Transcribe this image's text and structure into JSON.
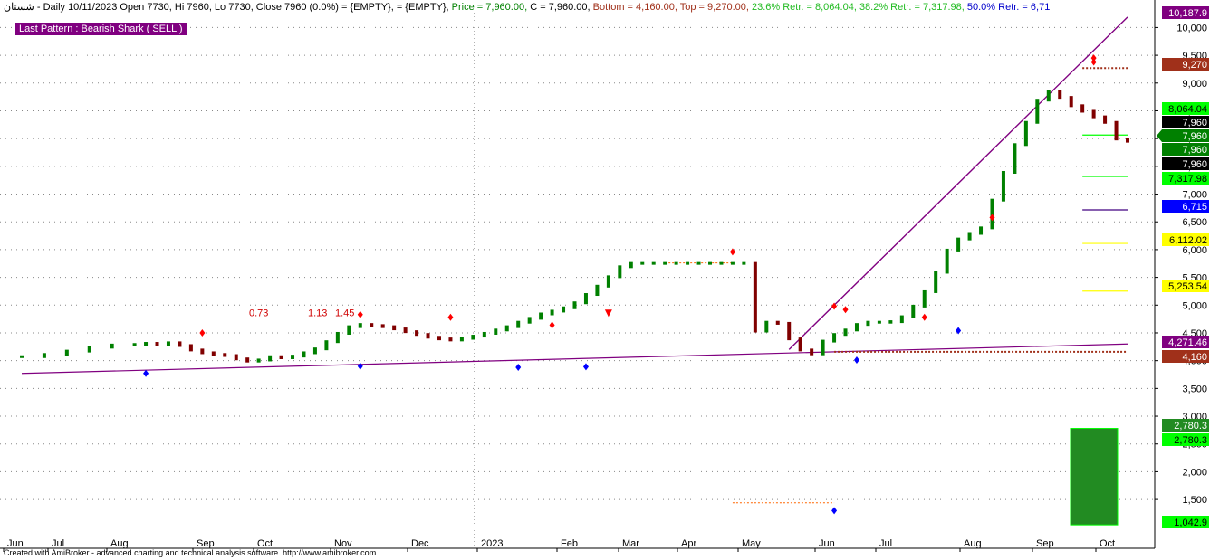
{
  "header": {
    "symbol": "شستان",
    "summary": "- Daily 10/11/2023 Open 7730, Hi 7960, Lo 7730, Close 7960 (0.0%)",
    "empty1": "= {EMPTY},",
    "empty2": "= {EMPTY},",
    "price": "Price = 7,960.00,",
    "c": "C = 7,960.00,",
    "bottom": "Bottom = 4,160.00,",
    "top": "Top = 9,270.00,",
    "retr236": "23.6% Retr. = 8,064.04,",
    "retr382": "38.2% Retr. = 7,317.98,",
    "retr50": "50.0% Retr. = 6,71"
  },
  "pattern_label": "Last Pattern : Bearish Shark ( SELL )",
  "footer": "Created with AmiBroker - advanced charting and technical analysis software. http://www.amibroker.com",
  "colors": {
    "purple": "#800080",
    "up": "#008000",
    "down": "#800000",
    "orange": "#ff6600",
    "red": "#ff0000",
    "blue": "#0000ff",
    "lime": "#00ff00",
    "yellow": "#ffff00",
    "darkgreen": "#228b22"
  },
  "chart_data": {
    "type": "line",
    "title": "",
    "xlabel": "",
    "ylabel": "",
    "ylim": [
      850,
      10300
    ],
    "grid": true,
    "x_ticks": [
      "Jun",
      "Jul",
      "Aug",
      "Sep",
      "Oct",
      "Nov",
      "Dec",
      "2023",
      "Feb",
      "Mar",
      "Apr",
      "May",
      "Jun",
      "Jul",
      "Aug",
      "Sep",
      "Oct"
    ],
    "y_ticks": [
      "1,500",
      "2,000",
      "2,500",
      "3,000",
      "3,500",
      "4,000",
      "4,500",
      "5,000",
      "5,500",
      "6,000",
      "6,500",
      "7,000",
      "7,500",
      "8,000",
      "8,500",
      "9,000",
      "9,500",
      "10,000"
    ],
    "y_tick_values": [
      1500,
      2000,
      2500,
      3000,
      3500,
      4000,
      4500,
      5000,
      5500,
      6000,
      6500,
      7000,
      7500,
      8000,
      8500,
      9000,
      9500,
      10000
    ],
    "fib_ratios": [
      "0.73",
      "1.13",
      "1.45"
    ],
    "price_tags": [
      {
        "label": "10,187.9",
        "value": 10187.9,
        "bg": "#800080",
        "fg": "#ffffff"
      },
      {
        "label": "9,270",
        "value": 9270,
        "bg": "#a0301a",
        "fg": "#ffffff"
      },
      {
        "label": "8,064.04",
        "value": 8064.04,
        "bg": "#00ff00",
        "fg": "#000000"
      },
      {
        "label": "7,960",
        "value": 7960,
        "bg": "#000000",
        "fg": "#ffffff"
      },
      {
        "label": "7,960",
        "value": 7960,
        "bg": "#008000",
        "fg": "#ffffff"
      },
      {
        "label": "7,960",
        "value": 7960,
        "bg": "#008000",
        "fg": "#ffffff"
      },
      {
        "label": "7,960",
        "value": 7960,
        "bg": "#000000",
        "fg": "#ffffff"
      },
      {
        "label": "7,317.98",
        "value": 7317.98,
        "bg": "#00ff00",
        "fg": "#000000"
      },
      {
        "label": "6,715",
        "value": 6715,
        "bg": "#0000ff",
        "fg": "#ffffff"
      },
      {
        "label": "6,112.02",
        "value": 6112.02,
        "bg": "#ffff00",
        "fg": "#000000"
      },
      {
        "label": "5,253.54",
        "value": 5253.54,
        "bg": "#ffff00",
        "fg": "#000000"
      },
      {
        "label": "4,271.46",
        "value": 4271.46,
        "bg": "#800080",
        "fg": "#ffffff"
      },
      {
        "label": "4,160",
        "value": 4160,
        "bg": "#a0301a",
        "fg": "#ffffff"
      },
      {
        "label": "2,780.3",
        "value": 2780.3,
        "bg": "#228b22",
        "fg": "#ffffff"
      },
      {
        "label": "2,780.3",
        "value": 2780.3,
        "bg": "#00ff00",
        "fg": "#000000"
      },
      {
        "label": "1,042.9",
        "value": 1042.9,
        "bg": "#00ff00",
        "fg": "#000000"
      }
    ],
    "price_path": [
      [
        0,
        4080
      ],
      [
        2,
        4120
      ],
      [
        4,
        4180
      ],
      [
        6,
        4250
      ],
      [
        8,
        4290
      ],
      [
        10,
        4300
      ],
      [
        11,
        4320
      ],
      [
        12,
        4300
      ],
      [
        13,
        4330
      ],
      [
        14,
        4280
      ],
      [
        15,
        4200
      ],
      [
        16,
        4150
      ],
      [
        17,
        4120
      ],
      [
        18,
        4100
      ],
      [
        19,
        4040
      ],
      [
        20,
        4000
      ],
      [
        21,
        4020
      ],
      [
        22,
        4080
      ],
      [
        23,
        4060
      ],
      [
        24,
        4090
      ],
      [
        25,
        4150
      ],
      [
        26,
        4220
      ],
      [
        27,
        4350
      ],
      [
        28,
        4500
      ],
      [
        29,
        4620
      ],
      [
        30,
        4660
      ],
      [
        31,
        4640
      ],
      [
        32,
        4620
      ],
      [
        33,
        4580
      ],
      [
        34,
        4530
      ],
      [
        35,
        4480
      ],
      [
        36,
        4430
      ],
      [
        37,
        4400
      ],
      [
        38,
        4380
      ],
      [
        39,
        4410
      ],
      [
        40,
        4450
      ],
      [
        41,
        4500
      ],
      [
        42,
        4560
      ],
      [
        43,
        4620
      ],
      [
        44,
        4700
      ],
      [
        45,
        4770
      ],
      [
        46,
        4850
      ],
      [
        47,
        4900
      ],
      [
        48,
        4960
      ],
      [
        49,
        5050
      ],
      [
        50,
        5200
      ],
      [
        51,
        5350
      ],
      [
        52,
        5520
      ],
      [
        53,
        5700
      ],
      [
        54,
        5760
      ],
      [
        55,
        5760
      ],
      [
        56,
        5760
      ],
      [
        57,
        5760
      ],
      [
        58,
        5760
      ],
      [
        59,
        5760
      ],
      [
        60,
        5760
      ],
      [
        61,
        5760
      ],
      [
        62,
        5760
      ],
      [
        63,
        5760
      ],
      [
        64,
        5760
      ],
      [
        65,
        4540
      ],
      [
        66,
        4700
      ],
      [
        67,
        4680
      ],
      [
        68,
        4400
      ],
      [
        69,
        4200
      ],
      [
        70,
        4130
      ],
      [
        71,
        4360
      ],
      [
        72,
        4480
      ],
      [
        73,
        4560
      ],
      [
        74,
        4660
      ],
      [
        75,
        4700
      ],
      [
        76,
        4700
      ],
      [
        77,
        4710
      ],
      [
        78,
        4800
      ],
      [
        79,
        4990
      ],
      [
        80,
        5250
      ],
      [
        81,
        5600
      ],
      [
        82,
        6000
      ],
      [
        83,
        6200
      ],
      [
        84,
        6300
      ],
      [
        85,
        6400
      ],
      [
        86,
        6900
      ],
      [
        87,
        7400
      ],
      [
        88,
        7900
      ],
      [
        89,
        8300
      ],
      [
        90,
        8700
      ],
      [
        91,
        8850
      ],
      [
        92,
        8750
      ],
      [
        93,
        8600
      ],
      [
        94,
        8500
      ],
      [
        95,
        8400
      ],
      [
        96,
        8300
      ],
      [
        97,
        8000
      ],
      [
        98,
        7960
      ]
    ],
    "signals": {
      "red_up": [
        [
          16,
          4500
        ],
        [
          30,
          4830
        ],
        [
          38,
          4780
        ],
        [
          47,
          4640
        ],
        [
          63,
          5960
        ],
        [
          72,
          4980
        ],
        [
          73,
          4920
        ],
        [
          80,
          4780
        ],
        [
          86,
          6580
        ],
        [
          95,
          9380
        ],
        [
          95,
          9450
        ]
      ],
      "blue_down": [
        [
          11,
          3770
        ],
        [
          30,
          3900
        ],
        [
          44,
          3880
        ],
        [
          50,
          3890
        ],
        [
          72,
          1300
        ],
        [
          74,
          4010
        ],
        [
          83,
          4540
        ]
      ],
      "red_arrow_down": [
        [
          52,
          4920
        ]
      ]
    },
    "lines": {
      "long_trend": {
        "from": [
          0,
          3770
        ],
        "to": [
          98,
          4300
        ]
      },
      "xabcd_leg": {
        "from": [
          68,
          4200
        ],
        "to": [
          98,
          10187.9
        ]
      },
      "top_9270": {
        "from": [
          94,
          9270
        ],
        "to": [
          98,
          9270
        ]
      },
      "bottom_4160": {
        "from": [
          72,
          4160
        ],
        "to": [
          98,
          4160
        ]
      },
      "level_6715": {
        "from": [
          94,
          6715
        ],
        "to": [
          98,
          6715
        ]
      },
      "level_6112": {
        "from": [
          94,
          6112
        ],
        "to": [
          98,
          6112
        ]
      },
      "level_5253": {
        "from": [
          94,
          5253
        ],
        "to": [
          98,
          5253
        ]
      },
      "level_7318": {
        "from": [
          94,
          7318
        ],
        "to": [
          98,
          7318
        ]
      },
      "level_8064": {
        "from": [
          94,
          8064
        ],
        "to": [
          98,
          8064
        ]
      },
      "orange_dash_hi": {
        "from": [
          57,
          5760
        ],
        "to": [
          63,
          5760
        ]
      },
      "orange_dash_lo": {
        "from": [
          63,
          1440
        ],
        "to": [
          72,
          1440
        ]
      }
    },
    "prz_box": {
      "from_value": 1042.9,
      "to_value": 2780.3
    }
  }
}
